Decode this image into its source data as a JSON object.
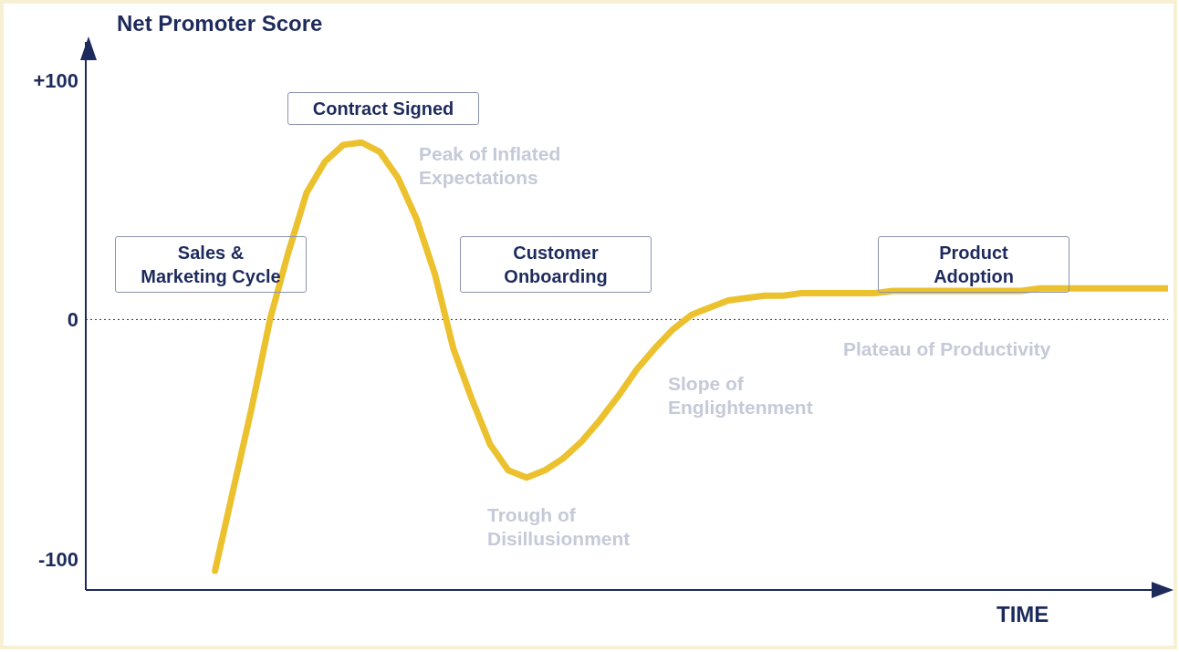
{
  "chart_data": {
    "type": "line",
    "ylabel": "Net Promoter Score",
    "xlabel": "TIME",
    "categories": [
      null,
      null,
      null,
      null,
      null,
      null,
      null,
      null,
      null,
      null,
      null,
      null,
      null,
      null,
      null,
      null,
      null,
      null,
      null,
      null,
      null,
      null,
      null,
      null,
      null,
      null,
      null,
      null,
      null,
      null,
      null,
      null,
      null,
      null,
      null,
      null,
      null,
      null,
      null,
      null,
      null,
      null,
      null,
      null,
      null,
      null,
      null,
      null,
      null,
      null,
      null,
      null,
      null
    ],
    "series": [
      {
        "color": "#ecc12e",
        "values": [
          -105,
          -71,
          -37,
          0,
          28,
          53,
          66,
          73,
          74,
          70,
          59,
          42,
          19,
          -12,
          -33,
          -52,
          -63,
          -66,
          -63,
          -58,
          -51,
          -42,
          -32,
          -21,
          -12,
          -4,
          2,
          5,
          8,
          9,
          10,
          10,
          11,
          11,
          11,
          11,
          11,
          12,
          12,
          12,
          12,
          12,
          12,
          12,
          12,
          13,
          13,
          13,
          13,
          13,
          13,
          13,
          13
        ]
      }
    ],
    "ylim": [
      -113,
      116
    ],
    "yticks": [
      {
        "value": 100,
        "label": "+100"
      },
      0,
      -100
    ],
    "tick_labels": "y",
    "grid": false,
    "legend": false,
    "marker": "none",
    "line_style": "solid",
    "ref_lines": [
      {
        "axis": "y",
        "value": 0,
        "line_style": "dotted",
        "color": "#333333"
      }
    ],
    "annotations": [
      "Contract Signed",
      "Sales & Marketing Cycle",
      "Customer Onboarding",
      "Product Adoption",
      "Peak of Inflated Expectations",
      "Trough of Disillusionment",
      "Slope of Englightenment",
      "Plateau of Productivity"
    ]
  }
}
